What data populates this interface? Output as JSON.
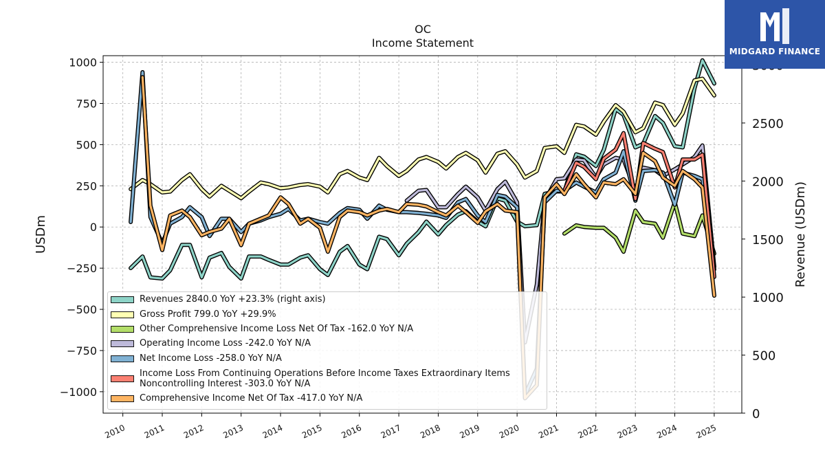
{
  "header": {
    "ticker": "OC",
    "subtitle": "Income Statement"
  },
  "logo": {
    "text": "MIDGARD FINANCE",
    "icon": "midgard-logo-icon",
    "color": "#2d55a8"
  },
  "chart_data": {
    "type": "line",
    "title": "OC",
    "subtitle": "Income Statement",
    "xlabel": "",
    "ylabel": "USDm",
    "y2label": "Revenue (USDm)",
    "ylim": [
      -1130,
      1040
    ],
    "y2lim": [
      0,
      3080
    ],
    "xlim": [
      2009.5,
      2025.7
    ],
    "x_ticks": [
      "2010",
      "2011",
      "2012",
      "2013",
      "2014",
      "2015",
      "2016",
      "2017",
      "2018",
      "2019",
      "2020",
      "2021",
      "2022",
      "2023",
      "2024",
      "2025"
    ],
    "y_ticks": [
      -1000,
      -750,
      -500,
      -250,
      0,
      250,
      500,
      750,
      1000
    ],
    "y2_ticks": [
      0,
      500,
      1000,
      1500,
      2000,
      2500,
      3000
    ],
    "grid": true,
    "legend_position": "lower-left",
    "series": [
      {
        "name": "Revenues  2840.0 YoY +23.3% (right axis)",
        "axis": "right",
        "color": "#8dd3c7",
        "x": [
          2010.2,
          2010.5,
          2010.7,
          2011.0,
          2011.2,
          2011.5,
          2011.7,
          2012.0,
          2012.2,
          2012.5,
          2012.7,
          2013.0,
          2013.2,
          2013.5,
          2013.7,
          2014.0,
          2014.2,
          2014.5,
          2014.7,
          2015.0,
          2015.2,
          2015.5,
          2015.7,
          2016.0,
          2016.2,
          2016.5,
          2016.7,
          2017.0,
          2017.2,
          2017.5,
          2017.7,
          2018.0,
          2018.2,
          2018.5,
          2018.7,
          2019.0,
          2019.2,
          2019.5,
          2019.7,
          2020.0,
          2020.2,
          2020.5,
          2020.7,
          2021.0,
          2021.2,
          2021.5,
          2021.7,
          2022.0,
          2022.2,
          2022.5,
          2022.7,
          2023.0,
          2023.2,
          2023.5,
          2023.7,
          2024.0,
          2024.2,
          2024.5,
          2024.7,
          2025.0
        ],
        "values": [
          1250,
          1350,
          1170,
          1160,
          1230,
          1450,
          1450,
          1170,
          1340,
          1380,
          1260,
          1160,
          1350,
          1350,
          1320,
          1280,
          1280,
          1340,
          1360,
          1240,
          1190,
          1390,
          1440,
          1280,
          1240,
          1520,
          1500,
          1360,
          1460,
          1560,
          1650,
          1540,
          1620,
          1710,
          1740,
          1650,
          1610,
          1850,
          1830,
          1650,
          1610,
          1620,
          1890,
          1910,
          1910,
          2230,
          2210,
          2130,
          2270,
          2620,
          2570,
          2290,
          2320,
          2560,
          2500,
          2300,
          2290,
          2800,
          3040,
          2840
        ]
      },
      {
        "name": "Gross Profit  799.0 YoY +29.9%",
        "axis": "left",
        "color": "#ffffb3",
        "x": [
          2010.2,
          2010.5,
          2010.7,
          2011.0,
          2011.2,
          2011.5,
          2011.7,
          2012.0,
          2012.2,
          2012.5,
          2012.7,
          2013.0,
          2013.2,
          2013.5,
          2013.7,
          2014.0,
          2014.2,
          2014.5,
          2014.7,
          2015.0,
          2015.2,
          2015.5,
          2015.7,
          2016.0,
          2016.2,
          2016.5,
          2016.7,
          2017.0,
          2017.2,
          2017.5,
          2017.7,
          2018.0,
          2018.2,
          2018.5,
          2018.7,
          2019.0,
          2019.2,
          2019.5,
          2019.7,
          2020.0,
          2020.2,
          2020.5,
          2020.7,
          2021.0,
          2021.2,
          2021.5,
          2021.7,
          2022.0,
          2022.2,
          2022.5,
          2022.7,
          2023.0,
          2023.2,
          2023.5,
          2023.7,
          2024.0,
          2024.2,
          2024.5,
          2024.7,
          2025.0
        ],
        "values": [
          230,
          285,
          260,
          210,
          215,
          285,
          320,
          230,
          185,
          250,
          220,
          175,
          215,
          270,
          260,
          235,
          240,
          255,
          260,
          245,
          210,
          320,
          340,
          300,
          285,
          420,
          370,
          310,
          340,
          410,
          425,
          395,
          355,
          425,
          450,
          405,
          330,
          445,
          460,
          380,
          300,
          340,
          480,
          490,
          450,
          620,
          610,
          560,
          640,
          740,
          700,
          575,
          600,
          755,
          740,
          620,
          690,
          890,
          900,
          799
        ]
      },
      {
        "name": "Other Comprehensive Income Loss Net Of Tax  -162.0 YoY N/A",
        "axis": "left",
        "color": "#b3de69",
        "x": [
          2021.2,
          2021.5,
          2021.7,
          2022.0,
          2022.2,
          2022.5,
          2022.7,
          2023.0,
          2023.2,
          2023.5,
          2023.7,
          2024.0,
          2024.2,
          2024.5,
          2024.7,
          2025.0
        ],
        "values": [
          -40,
          10,
          0,
          -5,
          -5,
          -65,
          -150,
          100,
          30,
          20,
          -65,
          150,
          -40,
          -55,
          70,
          -162
        ]
      },
      {
        "name": "Operating Income Loss  -242.0 YoY N/A",
        "axis": "left",
        "color": "#bebada",
        "x": [
          2017.2,
          2017.5,
          2017.7,
          2018.0,
          2018.2,
          2018.5,
          2018.7,
          2019.0,
          2019.2,
          2019.5,
          2019.7,
          2020.0,
          2020.2,
          2020.5,
          2020.7,
          2021.0,
          2021.2,
          2021.5,
          2021.7,
          2022.0,
          2022.2,
          2022.5,
          2022.7,
          2023.0,
          2023.2,
          2023.5,
          2023.7,
          2024.0,
          2024.2,
          2024.5,
          2024.7,
          2025.0
        ],
        "values": [
          160,
          220,
          225,
          120,
          120,
          200,
          245,
          180,
          100,
          230,
          275,
          150,
          -700,
          -350,
          160,
          290,
          295,
          410,
          405,
          300,
          380,
          420,
          410,
          220,
          360,
          345,
          310,
          350,
          380,
          425,
          495,
          -242
        ]
      },
      {
        "name": "Net Income Loss  -258.0 YoY N/A",
        "axis": "left",
        "color": "#80b1d3",
        "x": [
          2010.2,
          2010.5,
          2010.7,
          2011.0,
          2011.2,
          2011.5,
          2011.7,
          2012.0,
          2012.2,
          2012.5,
          2012.7,
          2013.0,
          2013.2,
          2013.5,
          2013.7,
          2014.0,
          2014.2,
          2014.5,
          2014.7,
          2015.0,
          2015.2,
          2015.5,
          2015.7,
          2016.0,
          2016.2,
          2016.5,
          2016.7,
          2017.0,
          2017.2,
          2017.5,
          2017.7,
          2018.0,
          2018.2,
          2018.5,
          2018.7,
          2019.0,
          2019.2,
          2019.5,
          2019.7,
          2020.0,
          2020.2,
          2020.5,
          2020.7,
          2021.0,
          2021.2,
          2021.5,
          2021.7,
          2022.0,
          2022.2,
          2022.5,
          2022.7,
          2023.0,
          2023.2,
          2023.5,
          2023.7,
          2024.0,
          2024.2,
          2024.5,
          2024.7,
          2025.0
        ],
        "values": [
          30,
          940,
          60,
          -100,
          20,
          60,
          120,
          60,
          -55,
          50,
          50,
          -30,
          20,
          40,
          60,
          80,
          110,
          40,
          50,
          30,
          20,
          85,
          115,
          105,
          50,
          130,
          105,
          90,
          90,
          85,
          80,
          70,
          55,
          150,
          170,
          70,
          30,
          195,
          185,
          120,
          -1020,
          -860,
          150,
          220,
          220,
          270,
          245,
          210,
          290,
          330,
          460,
          160,
          340,
          345,
          330,
          135,
          330,
          310,
          290,
          -258
        ]
      },
      {
        "name": "Income Loss From Continuing Operations Before Income Taxes Extraordinary Items Noncontrolling Interest  -303.0 YoY N/A",
        "axis": "left",
        "color": "#fb8072",
        "x": [
          2021.2,
          2021.5,
          2021.7,
          2022.0,
          2022.2,
          2022.5,
          2022.7,
          2023.0,
          2023.2,
          2023.5,
          2023.7,
          2024.0,
          2024.2,
          2024.5,
          2024.7,
          2025.0
        ],
        "values": [
          220,
          390,
          365,
          290,
          415,
          470,
          570,
          170,
          510,
          475,
          455,
          240,
          410,
          410,
          440,
          -303
        ]
      },
      {
        "name": "Comprehensive Income Net Of Tax  -417.0 YoY N/A",
        "axis": "left",
        "color": "#fdb462",
        "x": [
          2010.2,
          2010.5,
          2010.7,
          2011.0,
          2011.2,
          2011.5,
          2011.7,
          2012.0,
          2012.2,
          2012.5,
          2012.7,
          2013.0,
          2013.2,
          2013.5,
          2013.7,
          2014.0,
          2014.2,
          2014.5,
          2014.7,
          2015.0,
          2015.2,
          2015.5,
          2015.7,
          2016.0,
          2016.2,
          2016.5,
          2016.7,
          2017.0,
          2017.2,
          2017.5,
          2017.7,
          2018.0,
          2018.2,
          2018.5,
          2018.7,
          2019.0,
          2019.2,
          2019.5,
          2019.7,
          2020.0,
          2020.2,
          2020.5,
          2020.7,
          2021.0,
          2021.2,
          2021.5,
          2021.7,
          2022.0,
          2022.2,
          2022.5,
          2022.7,
          2023.0,
          2023.2,
          2023.5,
          2023.7,
          2024.0,
          2024.2,
          2024.5,
          2024.7,
          2025.0
        ],
        "values": [
          null,
          910,
          130,
          -140,
          70,
          100,
          60,
          -50,
          -30,
          -10,
          50,
          -110,
          20,
          50,
          70,
          180,
          140,
          20,
          50,
          -5,
          -150,
          60,
          100,
          90,
          70,
          100,
          110,
          90,
          140,
          135,
          125,
          90,
          70,
          130,
          90,
          25,
          95,
          140,
          100,
          90,
          -1040,
          -960,
          180,
          260,
          200,
          320,
          260,
          180,
          270,
          260,
          290,
          200,
          450,
          400,
          300,
          250,
          340,
          290,
          240,
          -417
        ]
      }
    ]
  }
}
